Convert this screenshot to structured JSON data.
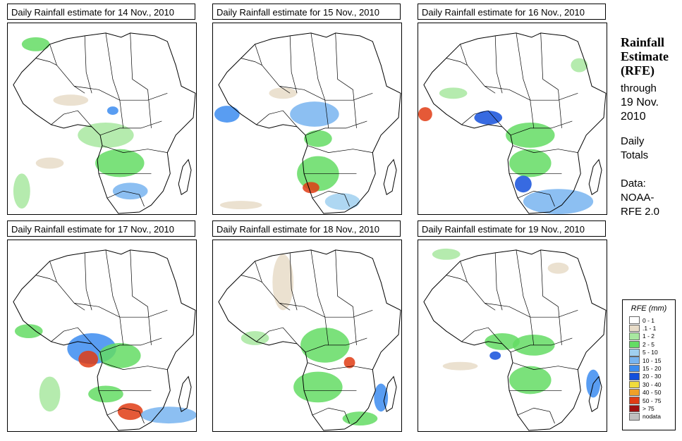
{
  "panels": [
    {
      "title": "Daily Rainfall estimate for  14 Nov., 2010"
    },
    {
      "title": "Daily Rainfall estimate for  15 Nov., 2010"
    },
    {
      "title": "Daily Rainfall estimate for  16 Nov., 2010"
    },
    {
      "title": "Daily Rainfall estimate for  17 Nov., 2010"
    },
    {
      "title": "Daily Rainfall estimate for  18 Nov., 2010"
    },
    {
      "title": "Daily Rainfall estimate for  19 Nov., 2010"
    }
  ],
  "sidebar": {
    "title_line1": "Rainfall",
    "title_line2": "Estimate",
    "title_line3": "(RFE)",
    "through_label": "through",
    "through_date_line1": "19 Nov.",
    "through_date_line2": "2010",
    "period_line1": "Daily",
    "period_line2": "Totals",
    "source_line1": "Data:",
    "source_line2": "NOAA-",
    "source_line3": "RFE 2.0"
  },
  "legend": {
    "title": "RFE (mm)",
    "items": [
      {
        "label": "0 - 1",
        "color": "#ffffff"
      },
      {
        "label": ".1 - 1",
        "color": "#e8dcc8"
      },
      {
        "label": "1 - 2",
        "color": "#a8e8a0"
      },
      {
        "label": "2 - 5",
        "color": "#64dc64"
      },
      {
        "label": "5 - 10",
        "color": "#a0d0f0"
      },
      {
        "label": "10 - 15",
        "color": "#78b4f0"
      },
      {
        "label": "15 - 20",
        "color": "#3c8cf0"
      },
      {
        "label": "20 - 30",
        "color": "#1450dc"
      },
      {
        "label": "30 - 40",
        "color": "#f0dc3c"
      },
      {
        "label": "40 - 50",
        "color": "#f0a028"
      },
      {
        "label": "50 - 75",
        "color": "#e03c14"
      },
      {
        "label": "> 75",
        "color": "#a01010"
      },
      {
        "label": "nodata",
        "color": "#c0c0c0"
      }
    ]
  }
}
